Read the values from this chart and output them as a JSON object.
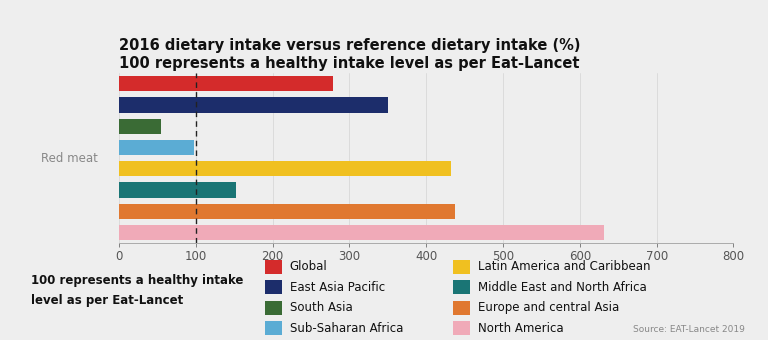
{
  "title_line1": "2016 dietary intake versus reference dietary intake (%)",
  "title_line2": "100 represents a healthy intake level as per Eat-Lancet",
  "ylabel": "Red meat",
  "xlim": [
    0,
    800
  ],
  "xticks": [
    0,
    100,
    200,
    300,
    400,
    500,
    600,
    700,
    800
  ],
  "reference_line": 100,
  "background_color": "#eeeeee",
  "bars": [
    {
      "label": "Global",
      "value": 278,
      "color": "#d42b2b"
    },
    {
      "label": "East Asia Pacific",
      "value": 350,
      "color": "#1c2d6b"
    },
    {
      "label": "South Asia",
      "value": 55,
      "color": "#3a6b35"
    },
    {
      "label": "Sub-Saharan Africa",
      "value": 97,
      "color": "#5bacd4"
    },
    {
      "label": "Latin America and Caribbean",
      "value": 432,
      "color": "#f0c020"
    },
    {
      "label": "Middle East and North Africa",
      "value": 152,
      "color": "#1a7575"
    },
    {
      "label": "Europe and central Asia",
      "value": 438,
      "color": "#e07830"
    },
    {
      "label": "North America",
      "value": 632,
      "color": "#f0aab8"
    }
  ],
  "legend_left_text_line1": "100 represents a healthy intake",
  "legend_left_text_line2": "level as per Eat-Lancet",
  "source_text": "Source: EAT-Lancet 2019",
  "title_fontsize": 10.5,
  "axis_fontsize": 8.5,
  "legend_fontsize": 8.5
}
